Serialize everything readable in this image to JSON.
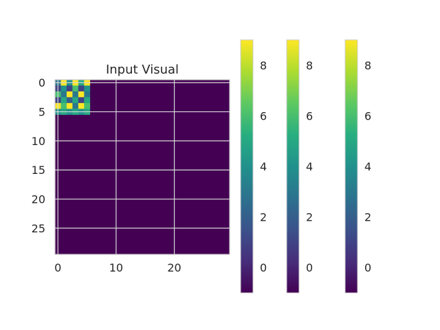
{
  "chart_data": {
    "type": "heatmap",
    "title": "Input Visual",
    "xlabel": "",
    "ylabel": "",
    "grid": true,
    "colormap": "viridis",
    "vmin": -1,
    "vmax": 9,
    "shape": [
      30,
      30
    ],
    "fill_value": -1,
    "x_ticks": [
      0,
      10,
      20
    ],
    "y_ticks": [
      0,
      5,
      10,
      15,
      20,
      25
    ],
    "patch_origin": [
      0,
      0
    ],
    "patch": [
      [
        3,
        9,
        4,
        9,
        5,
        9
      ],
      [
        1,
        4,
        1,
        6,
        1,
        4
      ],
      [
        6,
        3,
        9,
        3,
        9,
        3
      ],
      [
        1,
        5,
        2,
        5,
        1,
        5
      ],
      [
        9,
        6,
        9,
        3,
        9,
        6
      ],
      [
        4,
        5,
        4,
        5,
        4,
        5
      ]
    ],
    "colorbars": [
      {
        "ticks": [
          0,
          2,
          4,
          6,
          8
        ]
      },
      {
        "ticks": [
          0,
          2,
          4,
          6,
          8
        ]
      },
      {
        "ticks": [
          0,
          2,
          4,
          6,
          8
        ]
      }
    ]
  }
}
